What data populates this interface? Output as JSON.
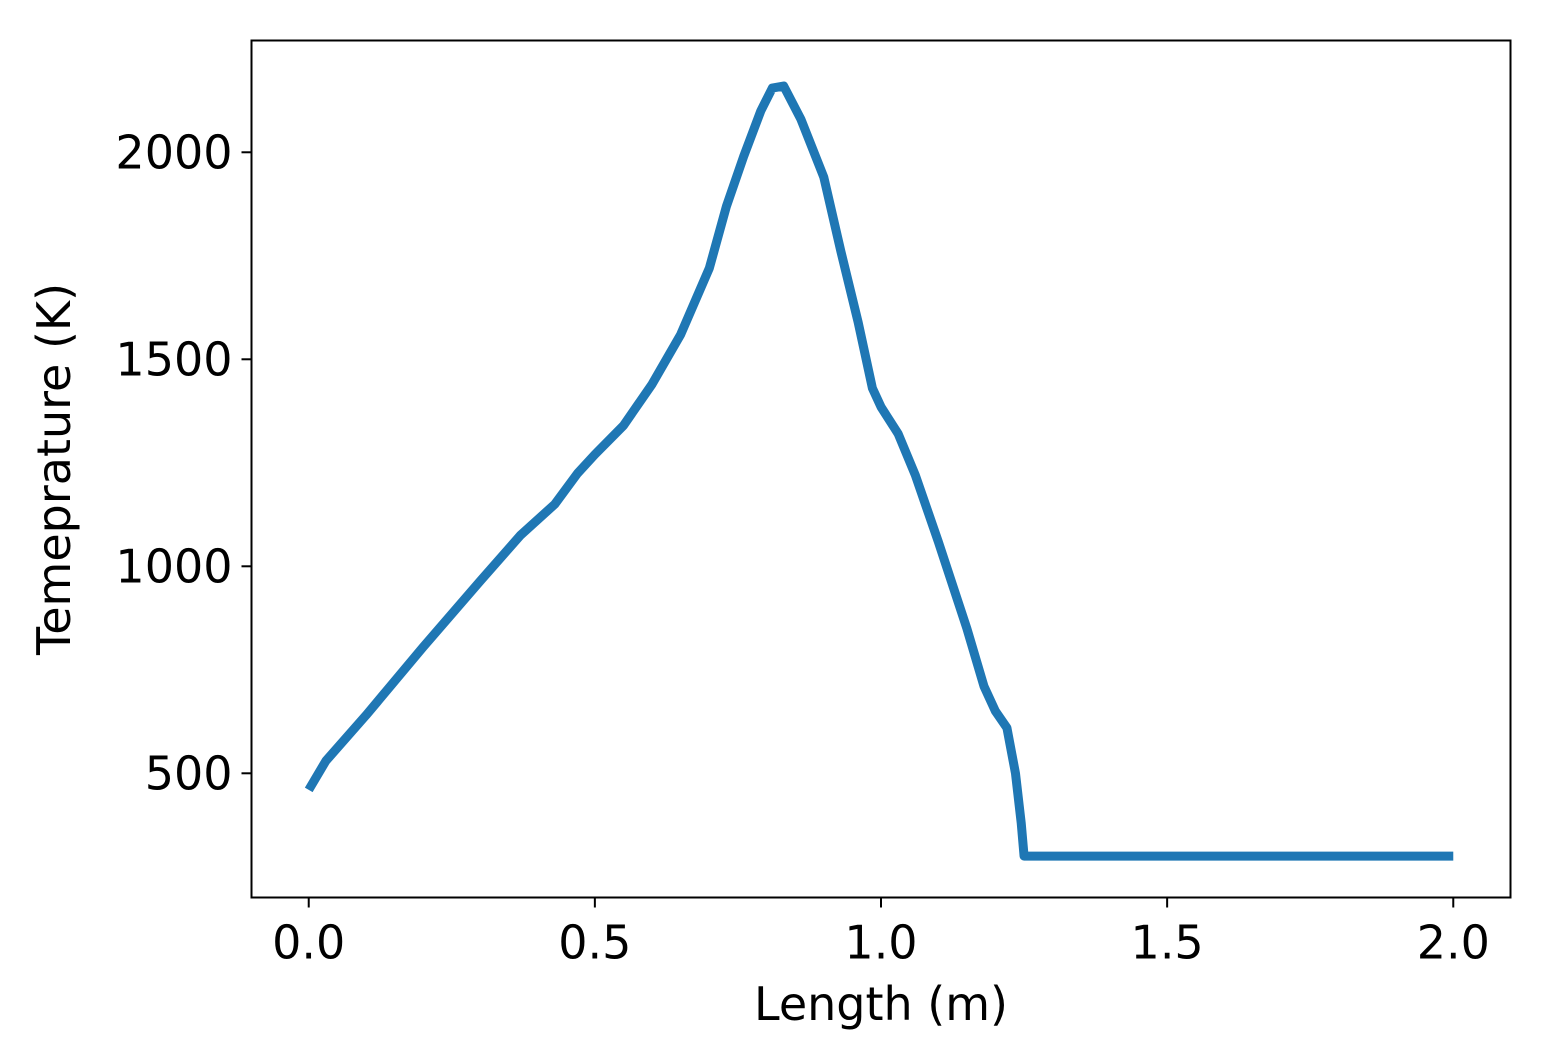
{
  "chart_data": {
    "type": "line",
    "title": "",
    "xlabel": "Length (m)",
    "ylabel": "Temeprature (K)",
    "xlim": [
      -0.1,
      2.1
    ],
    "ylim": [
      200,
      2270
    ],
    "xticks": [
      0.0,
      0.5,
      1.0,
      1.5,
      2.0
    ],
    "xtick_labels": [
      "0.0",
      "0.5",
      "1.0",
      "1.5",
      "2.0"
    ],
    "yticks": [
      500,
      1000,
      1500,
      2000
    ],
    "ytick_labels": [
      "500",
      "1000",
      "1500",
      "2000"
    ],
    "grid": false,
    "legend": "none",
    "series": [
      {
        "color": "#1f77b4",
        "x": [
          0.0,
          0.03,
          0.1,
          0.2,
          0.3,
          0.37,
          0.43,
          0.47,
          0.5,
          0.55,
          0.6,
          0.65,
          0.7,
          0.73,
          0.76,
          0.79,
          0.81,
          0.83,
          0.86,
          0.9,
          0.93,
          0.96,
          0.985,
          1.0,
          1.03,
          1.06,
          1.1,
          1.15,
          1.18,
          1.2,
          1.22,
          1.235,
          1.245,
          1.25,
          1.3,
          1.5,
          1.75,
          2.0
        ],
        "y": [
          460,
          530,
          640,
          805,
          965,
          1075,
          1150,
          1225,
          1270,
          1340,
          1440,
          1560,
          1720,
          1870,
          1990,
          2100,
          2155,
          2160,
          2080,
          1940,
          1760,
          1590,
          1430,
          1385,
          1320,
          1220,
          1060,
          850,
          710,
          650,
          610,
          500,
          380,
          300,
          300,
          300,
          300,
          300
        ]
      }
    ]
  }
}
